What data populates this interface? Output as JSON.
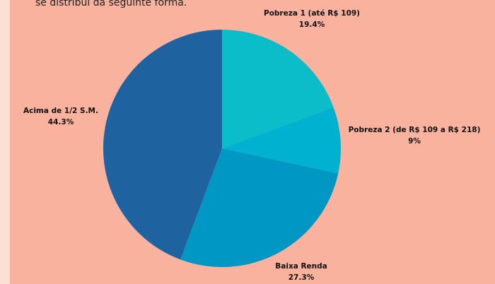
{
  "intro_text": "se distribui da seguinte forma.",
  "chart_data": {
    "type": "pie",
    "categories": [
      "Pobreza 1 (até R$ 109)",
      "Pobreza 2 (de R$ 109 a R$ 218)",
      "Baixa Renda",
      "Acima de 1/2 S.M."
    ],
    "values": [
      19.4,
      9,
      27.3,
      44.3
    ],
    "value_labels": [
      "19.4%",
      "9%",
      "27.3%",
      "44.3%"
    ],
    "colors": [
      "#0bbcc9",
      "#00b1d0",
      "#0097c4",
      "#1e63a0"
    ]
  }
}
